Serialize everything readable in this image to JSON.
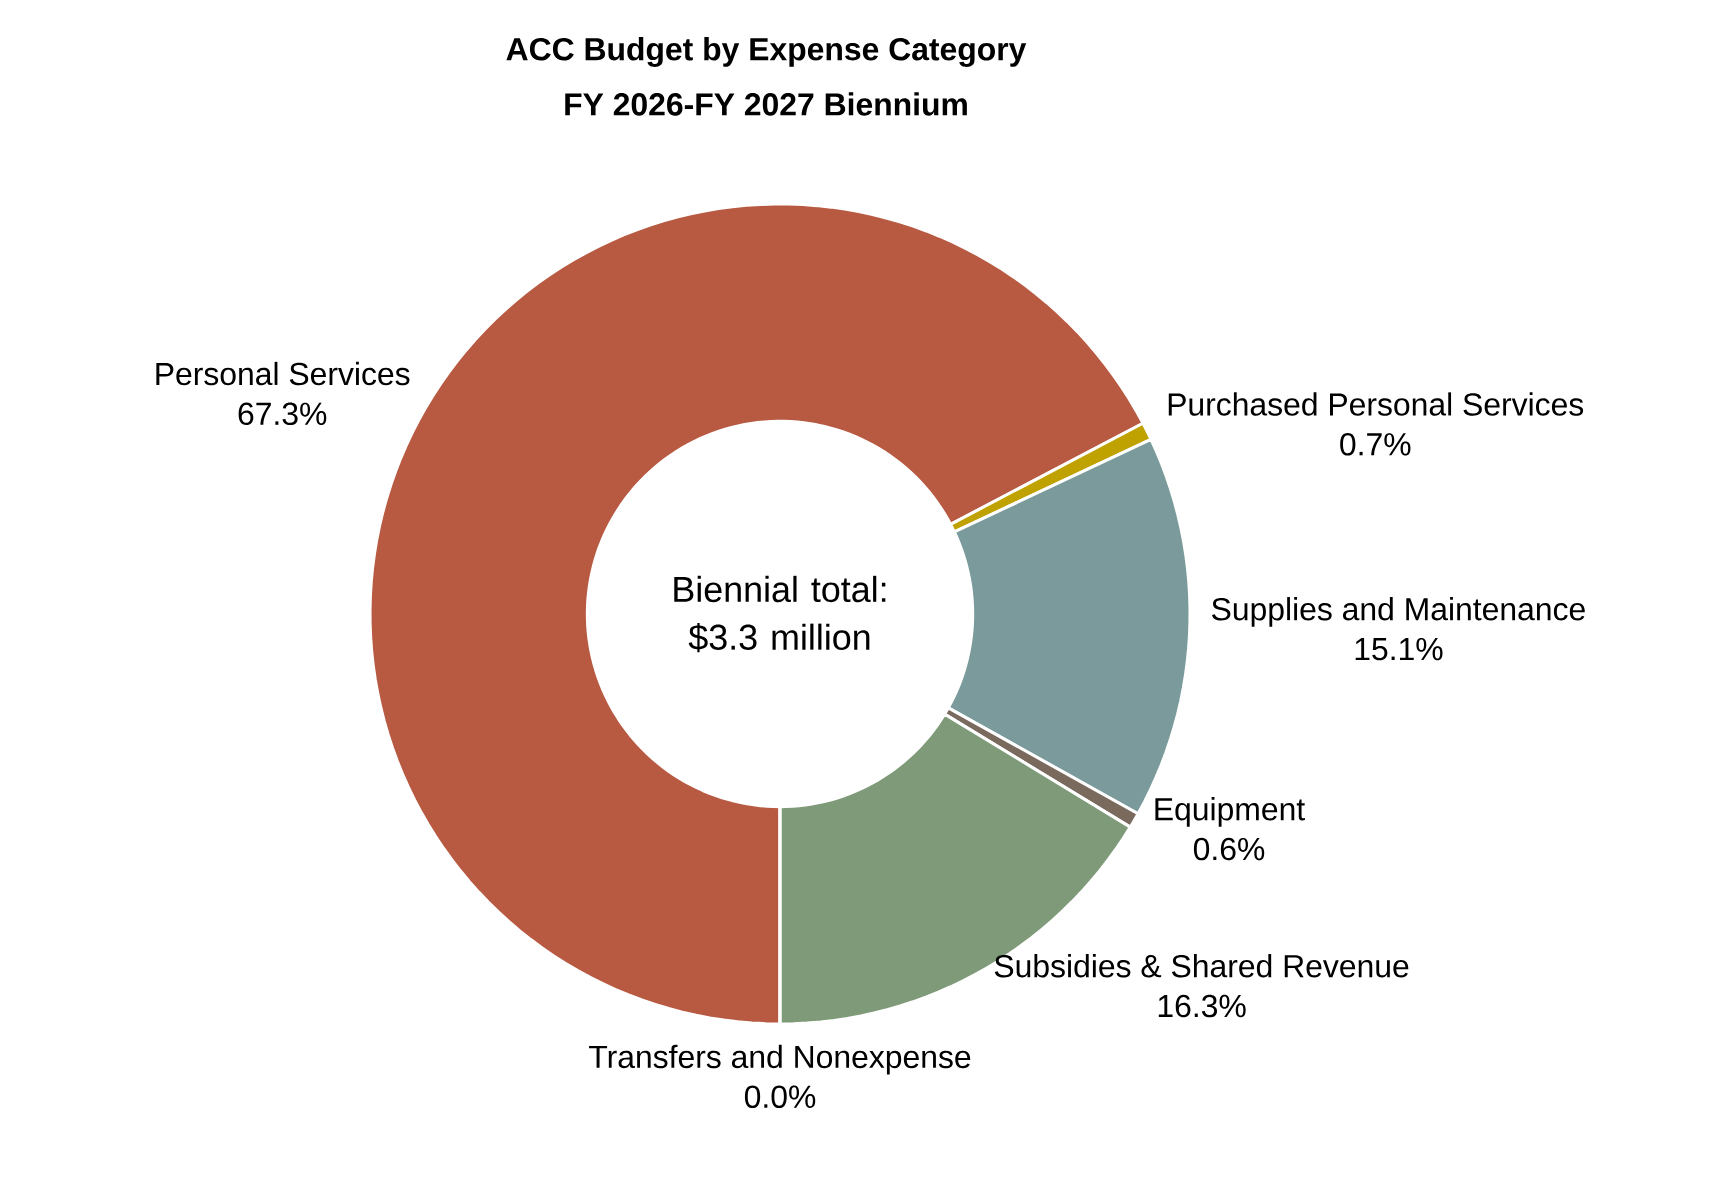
{
  "chart_data": {
    "type": "donut",
    "title": "ACC Budget by Expense Category",
    "subtitle": "FY 2026-FY 2027 Biennium",
    "categories": [
      "Personal Services",
      "Purchased Personal Services",
      "Supplies and Maintenance",
      "Equipment",
      "Subsidies & Shared Revenue",
      "Transfers and Nonexpense"
    ],
    "values": [
      67.3,
      0.7,
      15.1,
      0.6,
      16.3,
      0.0
    ],
    "value_labels": [
      "67.3%",
      "0.7%",
      "15.1%",
      "0.6%",
      "16.3%",
      "0.0%"
    ],
    "colors": [
      "#b85942",
      "#bfa100",
      "#7b9a9b",
      "#7a6a5e",
      "#7f9a78",
      "#4f81bd"
    ],
    "annotations": [
      "Biennial total: $3.3 million"
    ]
  }
}
